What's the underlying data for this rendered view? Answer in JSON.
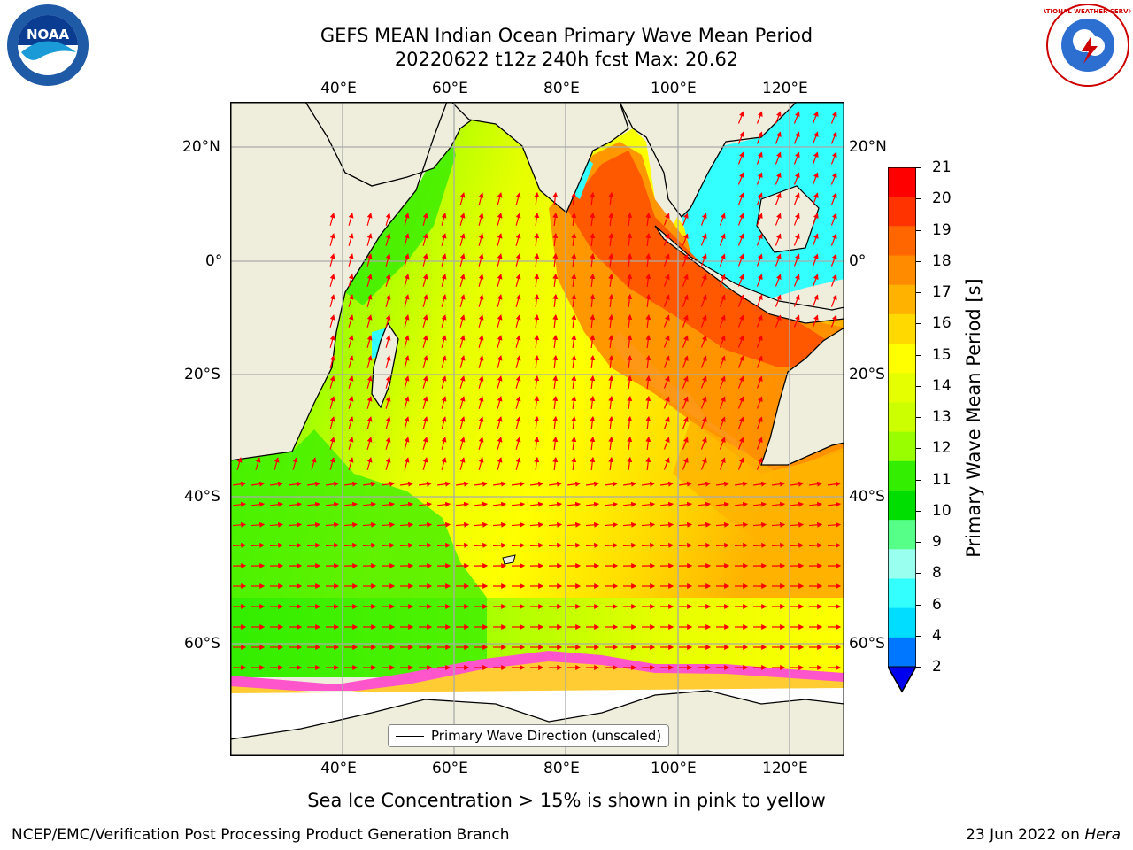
{
  "header": {
    "title_line1": "GEFS MEAN Indian Ocean Primary Wave Mean Period",
    "title_line2": "20220622 t12z 240h fcst   Max: 20.62"
  },
  "map": {
    "lon_ticks_top": [
      "40°E",
      "60°E",
      "80°E",
      "100°E",
      "120°E"
    ],
    "lon_ticks_bottom": [
      "40°E",
      "60°E",
      "80°E",
      "100°E",
      "120°E"
    ],
    "lat_ticks_left": [
      "20°N",
      "0°",
      "20°S",
      "40°S",
      "60°S"
    ],
    "lat_ticks_right": [
      "20°N",
      "0°",
      "20°S",
      "40°S",
      "60°S"
    ],
    "legend_label": "Primary Wave Direction (unscaled)",
    "land_color": "#efeedd",
    "ice_free_color": "#ffffff",
    "arrow_color": "#ff0000"
  },
  "colorbar": {
    "label": "Primary Wave Mean Period [s]",
    "ticks": [
      "21",
      "20",
      "19",
      "18",
      "17",
      "16",
      "15",
      "14",
      "13",
      "12",
      "11",
      "10",
      "9",
      "8",
      "6",
      "4",
      "2"
    ],
    "colors_top_to_bottom": [
      "#ff0000",
      "#ff3300",
      "#ff6600",
      "#ff8c00",
      "#ffb300",
      "#ffd900",
      "#ffff00",
      "#e6ff00",
      "#ccff00",
      "#99ff00",
      "#33ee00",
      "#00dd00",
      "#55ff88",
      "#99ffee",
      "#33ffff",
      "#00ddff",
      "#0077ff"
    ],
    "extend_color": "#0000ee"
  },
  "caption": "Sea Ice Concentration > 15% is shown in pink to yellow",
  "footer": {
    "left": "NCEP/EMC/Verification Post Processing Product Generation Branch",
    "right_date": "23 Jun 2022 on ",
    "right_host": "Hera"
  },
  "logos": {
    "noaa_text": "NOAA",
    "nws_text": "NATIONAL WEATHER SERVICE"
  }
}
